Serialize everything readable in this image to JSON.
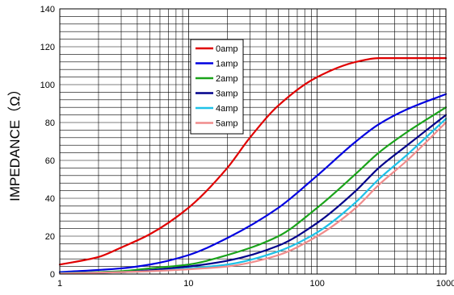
{
  "chart_data": {
    "type": "line",
    "title": "",
    "xlabel": "",
    "ylabel": "IMPEDANCE（Ω）",
    "x_scale": "log",
    "xlim": [
      1,
      1000
    ],
    "ylim": [
      0,
      140
    ],
    "x_ticks": [
      "1",
      "10",
      "100",
      "1000"
    ],
    "y_ticks": [
      "0",
      "20",
      "40",
      "60",
      "80",
      "100",
      "120",
      "140"
    ],
    "grid": true,
    "legend_position": "top-center",
    "series": [
      {
        "name": "0amp",
        "color": "#e00000",
        "x": [
          1,
          2,
          3,
          5,
          10,
          20,
          30,
          50,
          100,
          200,
          300,
          500,
          1000
        ],
        "y": [
          5,
          9,
          14,
          21,
          35,
          56,
          72,
          89,
          104,
          112,
          114,
          114,
          114
        ]
      },
      {
        "name": "1amp",
        "color": "#0000e0",
        "x": [
          1,
          3,
          5,
          10,
          20,
          50,
          100,
          200,
          300,
          500,
          1000
        ],
        "y": [
          1,
          3,
          5,
          10,
          19,
          35,
          52,
          70,
          79,
          87,
          95
        ]
      },
      {
        "name": "2amp",
        "color": "#1aa31a",
        "x": [
          1,
          3,
          5,
          10,
          20,
          50,
          100,
          200,
          300,
          500,
          1000
        ],
        "y": [
          0.5,
          1.5,
          3,
          5,
          10,
          20,
          35,
          53,
          64,
          75,
          88
        ]
      },
      {
        "name": "3amp",
        "color": "#00008b",
        "x": [
          1,
          3,
          5,
          10,
          20,
          50,
          100,
          200,
          300,
          500,
          1000
        ],
        "y": [
          0.5,
          1,
          2,
          4,
          7,
          15,
          27,
          44,
          56,
          68,
          84
        ]
      },
      {
        "name": "4amp",
        "color": "#1ec2e8",
        "x": [
          1,
          3,
          5,
          10,
          20,
          50,
          100,
          200,
          300,
          500,
          1000
        ],
        "y": [
          0.5,
          1,
          1.5,
          3,
          5,
          12,
          22,
          38,
          50,
          63,
          82
        ]
      },
      {
        "name": "5amp",
        "color": "#f08c8c",
        "x": [
          1,
          3,
          5,
          10,
          20,
          50,
          100,
          200,
          300,
          500,
          1000
        ],
        "y": [
          0.3,
          1,
          1.5,
          2.5,
          4,
          10,
          20,
          35,
          47,
          60,
          80
        ]
      }
    ]
  }
}
